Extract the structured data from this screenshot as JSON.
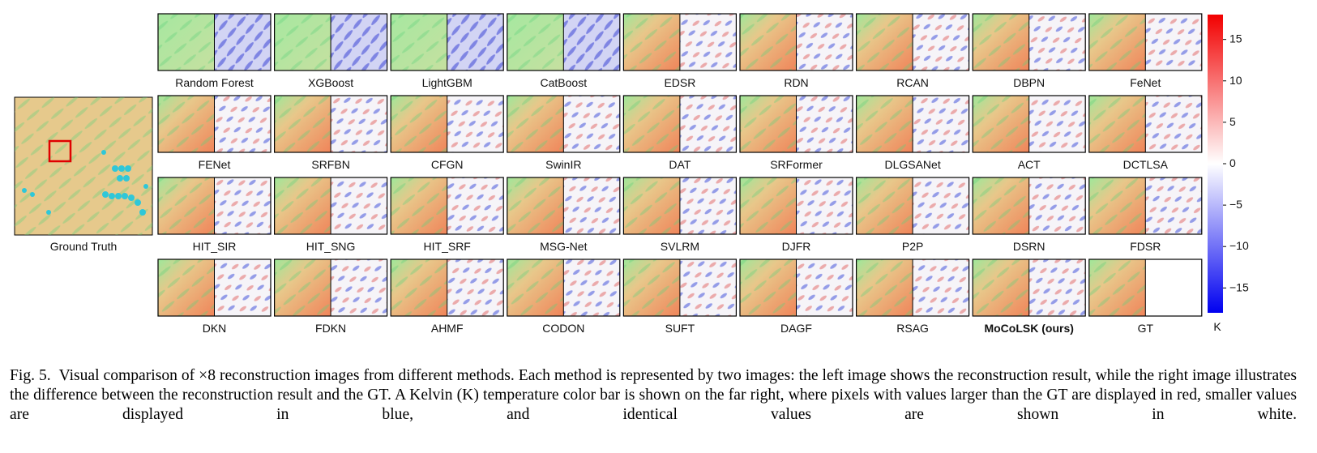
{
  "figure": {
    "ground_truth_label": "Ground Truth",
    "methods": [
      "Random Forest",
      "XGBoost",
      "LightGBM",
      "CatBoost",
      "EDSR",
      "RDN",
      "RCAN",
      "DBPN",
      "FeNet",
      "FENet",
      "SRFBN",
      "CFGN",
      "SwinIR",
      "DAT",
      "SRFormer",
      "DLGSANet",
      "ACT",
      "DCTLSA",
      "HIT_SIR",
      "HIT_SNG",
      "HIT_SRF",
      "MSG-Net",
      "SVLRM",
      "DJFR",
      "P2P",
      "DSRN",
      "FDSR",
      "DKN",
      "FDKN",
      "AHMF",
      "CODON",
      "SUFT",
      "DAGF",
      "RSAG",
      "MoCoLSK (ours)",
      "GT"
    ],
    "colorbar": {
      "lim": [
        -18,
        18
      ],
      "ticks": [
        15,
        10,
        5,
        0,
        {
          "value": -5,
          "label": "−5"
        },
        {
          "value": -10,
          "label": "−10"
        },
        {
          "value": -15,
          "label": "−15"
        }
      ],
      "unit": "K"
    },
    "caption": {
      "label": "Fig. 5.",
      "text": "Visual comparison of ×8 reconstruction images from different methods. Each method is represented by two images: the left image shows the reconstruction result, while the right image illustrates the difference between the reconstruction result and the GT. A Kelvin (K) temperature color bar is shown on the far right, where pixels with values larger than the GT are displayed in red, smaller values are displayed in blue, and identical values are shown in white."
    }
  }
}
